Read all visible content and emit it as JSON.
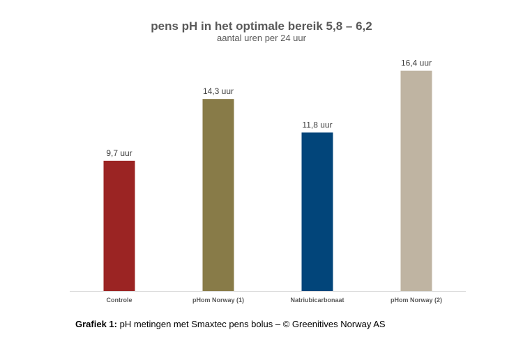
{
  "chart_data": {
    "type": "bar",
    "title": "pens pH in het optimale bereik 5,8 – 6,2",
    "subtitle": "aantal uren per 24 uur",
    "categories": [
      "Controle",
      "pHom Norway (1)",
      "Natriubicarbonaat",
      "pHom Norway (2)"
    ],
    "values": [
      9.7,
      14.3,
      11.8,
      16.4
    ],
    "data_labels": [
      "9,7 uur",
      "14,3 uur",
      "11,8 uur",
      "16,4 uur"
    ],
    "colors": [
      "#9B2423",
      "#887B48",
      "#02457A",
      "#BFB4A2"
    ],
    "xlabel": "",
    "ylabel": "",
    "ylim": [
      0,
      16.9
    ],
    "grid": false,
    "legend": "none"
  },
  "caption": {
    "label": "Grafiek 1:",
    "text": " pH metingen met Smaxtec pens bolus – © Greenitives Norway AS"
  }
}
